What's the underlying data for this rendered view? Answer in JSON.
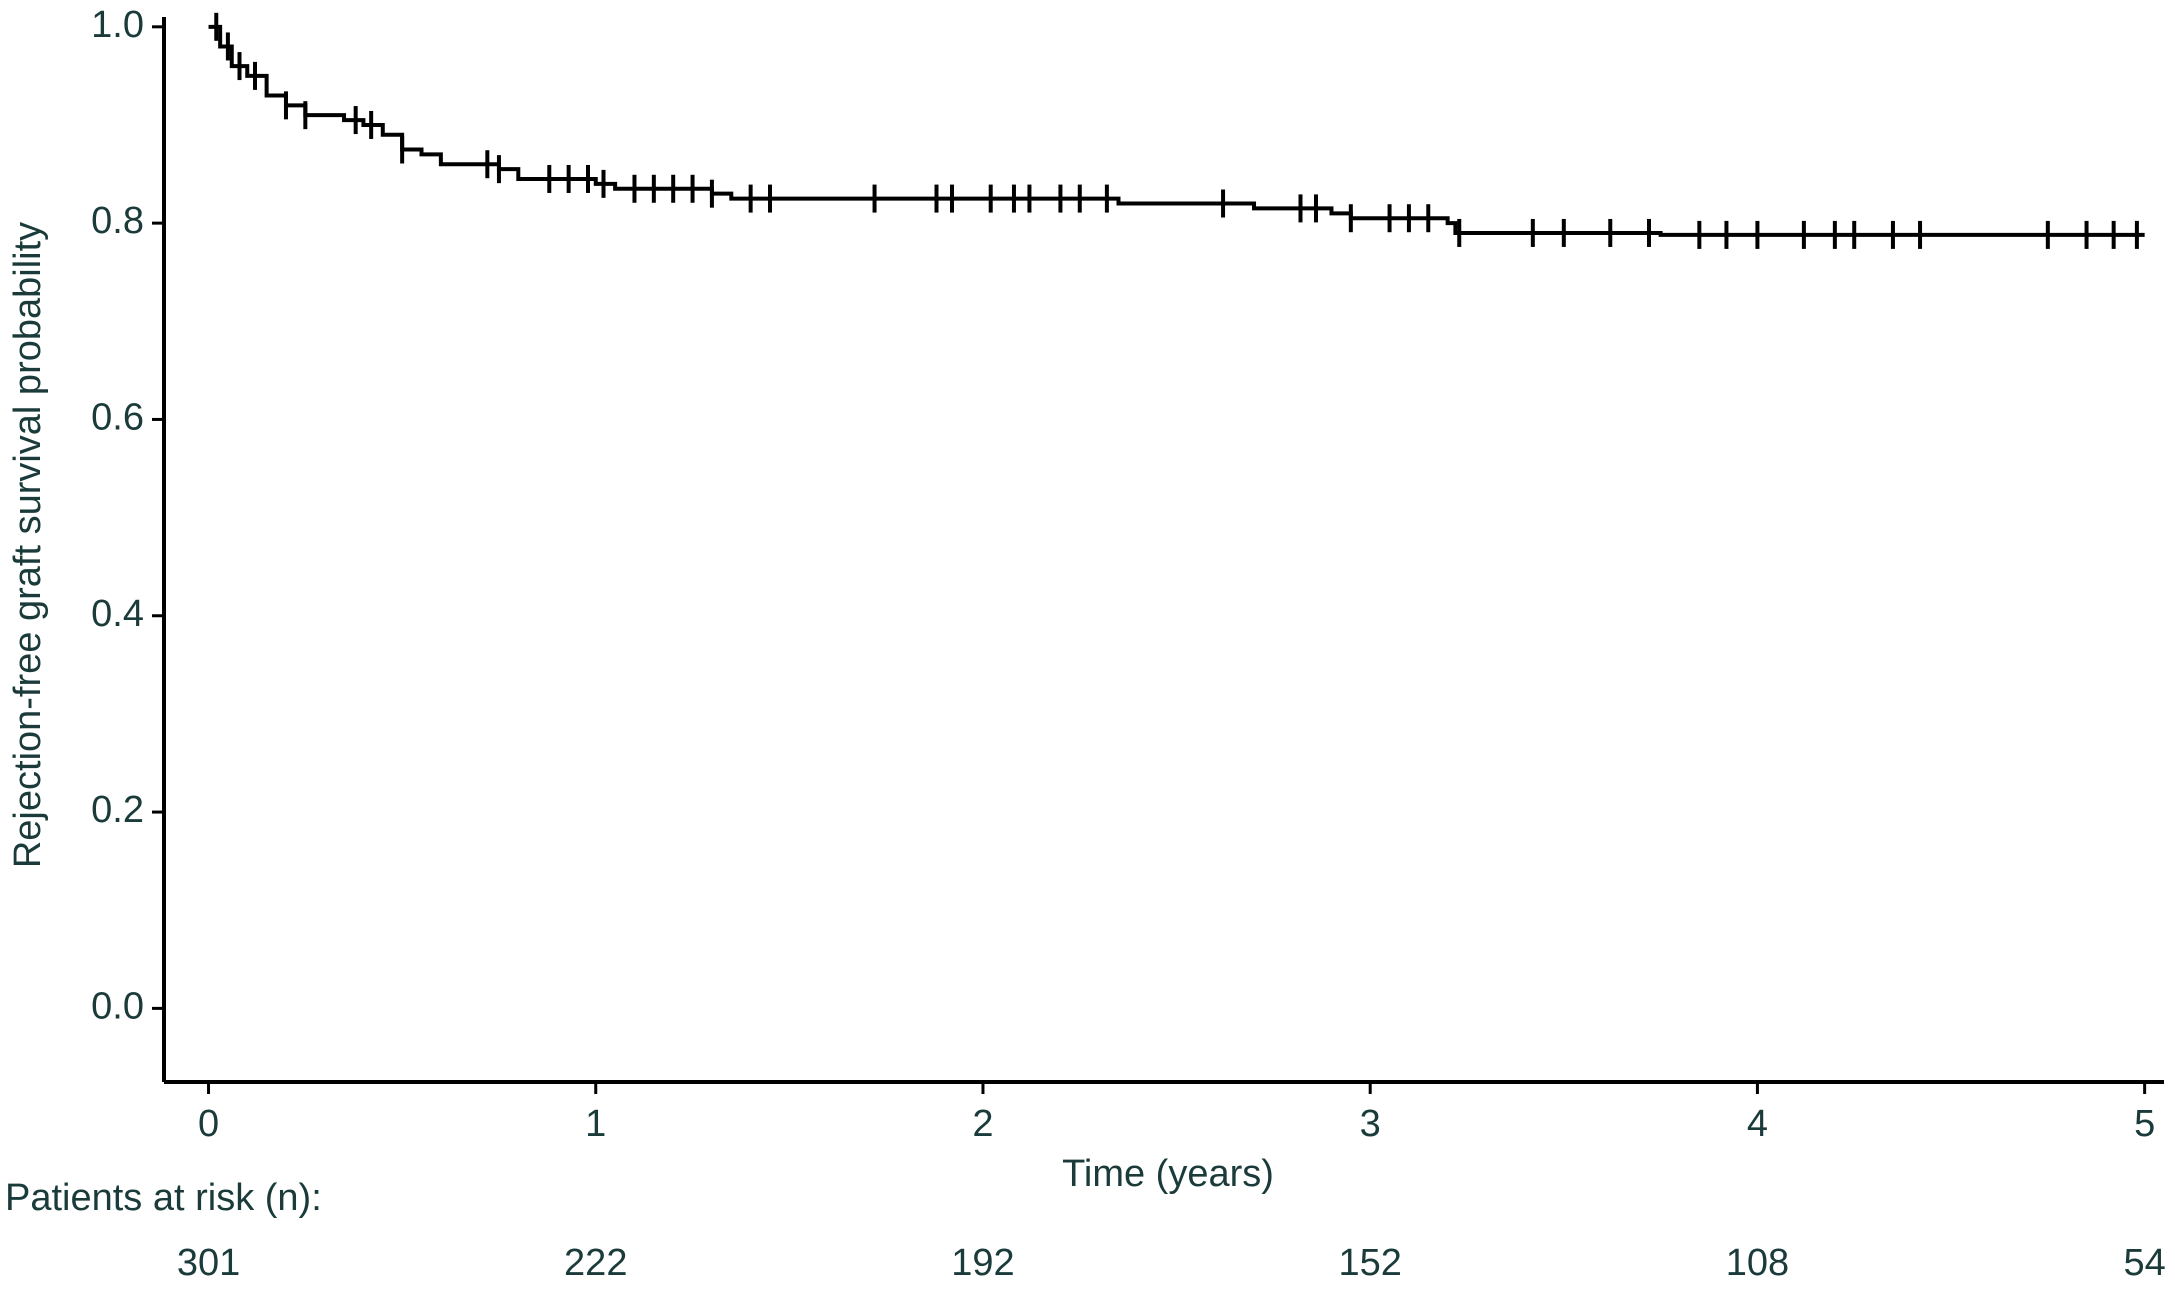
{
  "chart_data": {
    "type": "line",
    "step": true,
    "color": "#000000",
    "text_color": "#1b3b3b",
    "x_label": "Time (years)",
    "y_label": "Rejection-free graft survival probability",
    "x": [
      0,
      0.03,
      0.06,
      0.1,
      0.15,
      0.2,
      0.25,
      0.35,
      0.4,
      0.45,
      0.5,
      0.55,
      0.6,
      0.75,
      0.8,
      1.0,
      1.05,
      1.3,
      1.35,
      2.35,
      2.7,
      2.9,
      2.95,
      3.2,
      3.22,
      3.75,
      5.0
    ],
    "values": [
      1.0,
      0.98,
      0.96,
      0.95,
      0.93,
      0.92,
      0.91,
      0.905,
      0.9,
      0.89,
      0.875,
      0.87,
      0.86,
      0.855,
      0.845,
      0.84,
      0.835,
      0.83,
      0.825,
      0.82,
      0.815,
      0.81,
      0.805,
      0.8,
      0.79,
      0.788,
      0.788
    ],
    "censored": {
      "x": [
        0.02,
        0.05,
        0.08,
        0.12,
        0.2,
        0.25,
        0.38,
        0.42,
        0.5,
        0.72,
        0.75,
        0.88,
        0.93,
        0.98,
        1.02,
        1.1,
        1.15,
        1.2,
        1.25,
        1.3,
        1.4,
        1.45,
        1.72,
        1.88,
        1.92,
        2.02,
        2.08,
        2.12,
        2.2,
        2.25,
        2.32,
        2.62,
        2.82,
        2.86,
        2.95,
        3.05,
        3.1,
        3.15,
        3.23,
        3.42,
        3.5,
        3.62,
        3.72,
        3.85,
        3.92,
        4.0,
        4.12,
        4.2,
        4.25,
        4.35,
        4.42,
        4.75,
        4.85,
        4.92,
        4.98
      ],
      "values": [
        1.0,
        0.98,
        0.96,
        0.95,
        0.92,
        0.91,
        0.905,
        0.9,
        0.875,
        0.86,
        0.855,
        0.845,
        0.845,
        0.845,
        0.84,
        0.835,
        0.835,
        0.835,
        0.835,
        0.83,
        0.825,
        0.825,
        0.825,
        0.825,
        0.825,
        0.825,
        0.825,
        0.825,
        0.825,
        0.825,
        0.825,
        0.82,
        0.815,
        0.815,
        0.805,
        0.805,
        0.805,
        0.805,
        0.79,
        0.79,
        0.79,
        0.79,
        0.79,
        0.788,
        0.788,
        0.788,
        0.788,
        0.788,
        0.788,
        0.788,
        0.788,
        0.788,
        0.788,
        0.788,
        0.788
      ]
    },
    "xlim": [
      -0.115,
      5.05
    ],
    "xticks": [
      0,
      1,
      2,
      3,
      4,
      5
    ],
    "ylim": [
      -0.075,
      1.01
    ],
    "yticks": [
      {
        "value": 0,
        "label": "0.0"
      },
      0.2,
      0.4,
      0.6,
      0.8,
      {
        "value": 1,
        "label": "1.0"
      }
    ],
    "risk_table": {
      "title": "Patients at risk (n):",
      "values": [
        301,
        222,
        192,
        152,
        108,
        54
      ]
    }
  }
}
